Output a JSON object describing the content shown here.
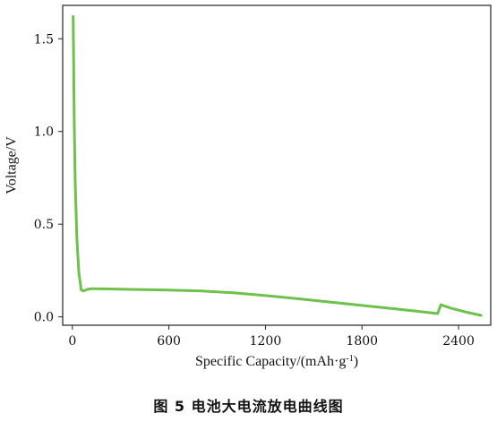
{
  "caption": "图 5   电池大电流放电曲线图",
  "chart_data": {
    "type": "line",
    "title": "",
    "xlabel_main": "Specific Capacity/(mAh·g",
    "xlabel_sup": "-1",
    "xlabel_end": ")",
    "ylabel": "Voltage/V",
    "xlim": [
      -60,
      2600
    ],
    "ylim": [
      -0.045,
      1.68
    ],
    "xticks": [
      0,
      600,
      1200,
      1800,
      2400
    ],
    "xtick_labels": [
      "0",
      "600",
      "1200",
      "1800",
      "2400"
    ],
    "yticks": [
      0.0,
      0.5,
      1.0,
      1.5
    ],
    "ytick_labels": [
      "0.0",
      "0.5",
      "1.0",
      "1.5"
    ],
    "grid": false,
    "legend": "none",
    "series": [
      {
        "color": "#6cc24a",
        "x": [
          5,
          8,
          12,
          18,
          28,
          40,
          55,
          70,
          90,
          120,
          200,
          400,
          600,
          800,
          1000,
          1200,
          1400,
          1600,
          1800,
          2000,
          2150,
          2270,
          2275,
          2290,
          2350,
          2450,
          2540
        ],
        "y": [
          1.62,
          1.4,
          1.05,
          0.72,
          0.43,
          0.24,
          0.145,
          0.14,
          0.148,
          0.152,
          0.151,
          0.148,
          0.145,
          0.14,
          0.13,
          0.115,
          0.098,
          0.08,
          0.062,
          0.044,
          0.03,
          0.018,
          0.03,
          0.065,
          0.048,
          0.025,
          0.008
        ]
      }
    ]
  }
}
